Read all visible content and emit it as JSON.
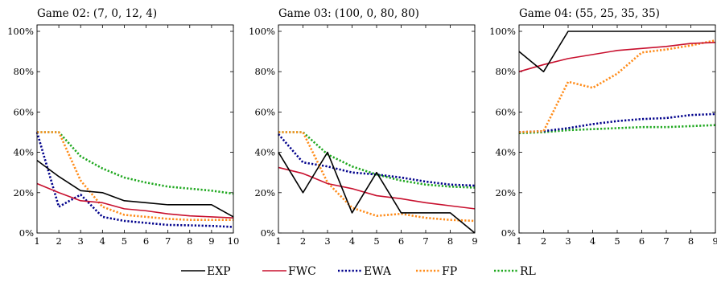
{
  "chart_data": [
    {
      "type": "line",
      "title": "Game 02:",
      "params": "(7, 0, 12, 4)",
      "x": [
        1,
        2,
        3,
        4,
        5,
        6,
        7,
        8,
        9,
        10
      ],
      "xticks": [
        "1",
        "2",
        "3",
        "4",
        "5",
        "6",
        "7",
        "8",
        "9",
        "10"
      ],
      "xlim": [
        1,
        10
      ],
      "ylim": [
        0,
        100
      ],
      "yticks": [
        "0%",
        "20%",
        "40%",
        "60%",
        "80%",
        "100%"
      ],
      "series": [
        {
          "name": "EXP",
          "values": [
            36,
            28,
            21,
            20,
            16,
            15,
            14,
            14,
            14,
            8
          ]
        },
        {
          "name": "FWC",
          "values": [
            24.5,
            20,
            16,
            15,
            12,
            11,
            9.5,
            8.5,
            8,
            7.5
          ]
        },
        {
          "name": "EWA",
          "values": [
            50,
            13,
            19,
            8,
            6,
            5,
            4,
            3.8,
            3.5,
            3
          ]
        },
        {
          "name": "FP",
          "values": [
            50,
            50,
            26,
            13,
            9,
            8,
            7,
            6.5,
            6.5,
            6.5
          ]
        },
        {
          "name": "RL",
          "values": [
            50,
            50,
            38,
            32,
            27.5,
            25,
            23,
            22,
            21,
            19.5
          ]
        }
      ]
    },
    {
      "type": "line",
      "title": "Game 03:",
      "params": "(100, 0, 80, 80)",
      "x": [
        1,
        2,
        3,
        4,
        5,
        6,
        7,
        8,
        9
      ],
      "xticks": [
        "1",
        "2",
        "3",
        "4",
        "5",
        "6",
        "7",
        "8",
        "9"
      ],
      "xlim": [
        1,
        9
      ],
      "ylim": [
        0,
        100
      ],
      "yticks": [
        "0%",
        "20%",
        "40%",
        "60%",
        "80%",
        "100%"
      ],
      "series": [
        {
          "name": "EXP",
          "values": [
            40,
            20,
            40,
            10,
            30,
            10,
            10,
            10,
            0
          ]
        },
        {
          "name": "FWC",
          "values": [
            32.5,
            29.5,
            24.5,
            22,
            18.5,
            17,
            15,
            13.5,
            12
          ]
        },
        {
          "name": "EWA",
          "values": [
            49,
            35,
            33,
            30,
            29,
            27.5,
            25.5,
            24,
            23.5
          ]
        },
        {
          "name": "FP",
          "values": [
            50,
            50,
            25,
            12.5,
            8.5,
            9.5,
            7.5,
            6.5,
            6
          ]
        },
        {
          "name": "RL",
          "values": [
            50,
            50,
            39,
            33,
            29,
            26,
            24,
            23,
            22.5
          ]
        }
      ]
    },
    {
      "type": "line",
      "title": "Game 04:",
      "params": "(55, 25, 35, 35)",
      "x": [
        1,
        2,
        3,
        4,
        5,
        6,
        7,
        8,
        9
      ],
      "xticks": [
        "1",
        "2",
        "3",
        "4",
        "5",
        "6",
        "7",
        "8",
        "9"
      ],
      "xlim": [
        1,
        9
      ],
      "ylim": [
        0,
        100
      ],
      "yticks": [
        "0%",
        "20%",
        "40%",
        "60%",
        "80%",
        "100%"
      ],
      "series": [
        {
          "name": "EXP",
          "values": [
            90,
            80,
            100,
            100,
            100,
            100,
            100,
            100,
            100
          ]
        },
        {
          "name": "FWC",
          "values": [
            80,
            83.5,
            86.5,
            88.5,
            90.5,
            91.5,
            92.5,
            94,
            94.5
          ]
        },
        {
          "name": "EWA",
          "values": [
            50,
            50.5,
            52,
            54,
            55.5,
            56.5,
            57,
            58.5,
            59
          ]
        },
        {
          "name": "FP",
          "values": [
            50,
            50.5,
            75,
            72,
            79,
            89.5,
            91,
            93,
            95.5
          ]
        },
        {
          "name": "RL",
          "values": [
            49.5,
            50,
            51,
            51.5,
            52,
            52.5,
            52.5,
            53,
            53.5
          ]
        }
      ]
    }
  ],
  "legend": [
    {
      "name": "EXP",
      "color": "#000000",
      "style": "solid"
    },
    {
      "name": "FWC",
      "color": "#c8102e",
      "style": "solid"
    },
    {
      "name": "EWA",
      "color": "#00008b",
      "style": "dotted"
    },
    {
      "name": "FP",
      "color": "#ff8c1a",
      "style": "dotted"
    },
    {
      "name": "RL",
      "color": "#1fa81f",
      "style": "dotted"
    }
  ]
}
